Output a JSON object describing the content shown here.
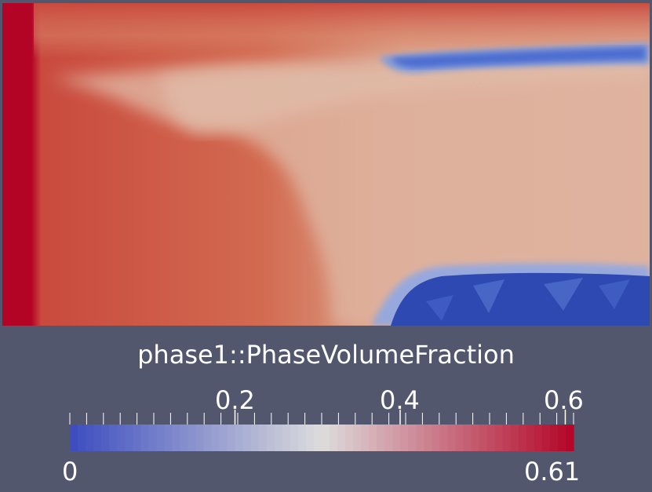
{
  "scalar_bar": {
    "title": "phase1::PhaseVolumeFraction",
    "range": [
      0,
      0.61
    ],
    "range_labels": {
      "min": "0",
      "max": "0.61"
    },
    "major_ticks": [
      {
        "value": 0.2,
        "label": "0.2"
      },
      {
        "value": 0.4,
        "label": "0.4"
      },
      {
        "value": 0.6,
        "label": "0.6"
      }
    ],
    "minor_tick_count": 31,
    "color_map": {
      "name": "Cool to Warm",
      "low": "#3b4cc0",
      "mid": "#dddcdc",
      "high": "#b40426"
    }
  },
  "field": {
    "name": "phase1::PhaseVolumeFraction",
    "colors": {
      "inlet": "#b40426",
      "bulk": "#d26a50",
      "plume": "#dfb39f",
      "upper_edge": "#d7765e",
      "void_low": "#2f49b2",
      "void_high": "#5b7fd8"
    }
  },
  "background": "#52576e"
}
